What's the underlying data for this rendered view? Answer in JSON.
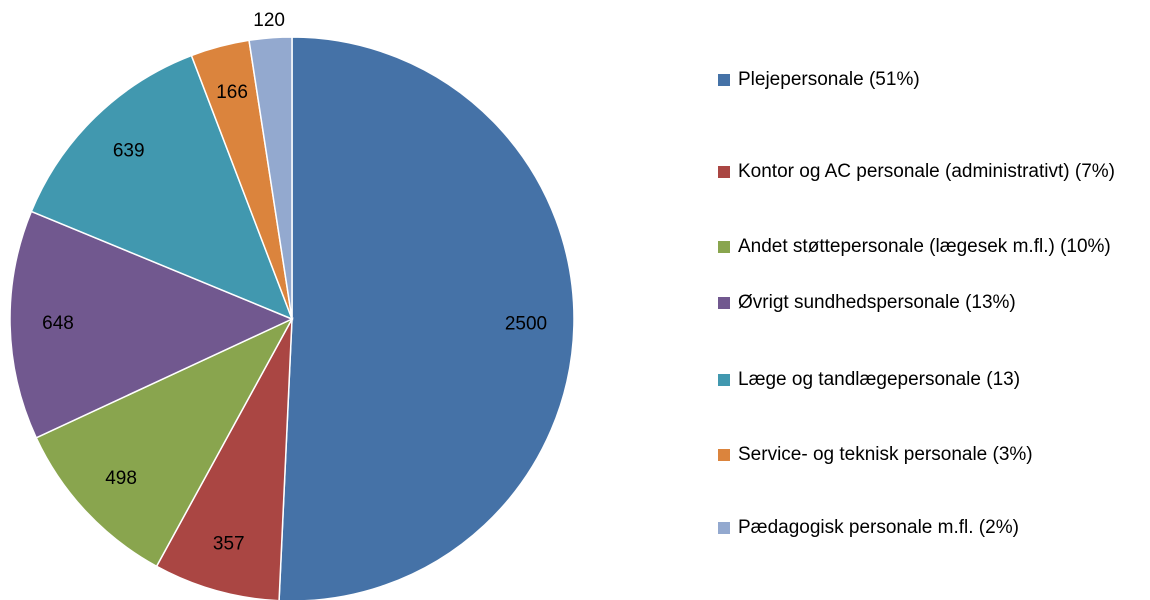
{
  "chart_data": {
    "type": "pie",
    "categories": [
      "Plejepersonale (51%)",
      "Kontor og AC personale (administrativt) (7%)",
      "Andet støttepersonale (lægesek m.fl.) (10%)",
      "Øvrigt sundhedspersonale (13%)",
      "Læge og tandlægepersonale (13)",
      "Service- og teknisk personale (3%)",
      "Pædagogisk personale m.fl. (2%)"
    ],
    "values": [
      2500,
      357,
      498,
      648,
      639,
      166,
      120
    ],
    "colors": [
      "#4572a7",
      "#aa4643",
      "#89a54e",
      "#71588f",
      "#4198af",
      "#db843d",
      "#93a9cf"
    ],
    "legend": "right"
  }
}
